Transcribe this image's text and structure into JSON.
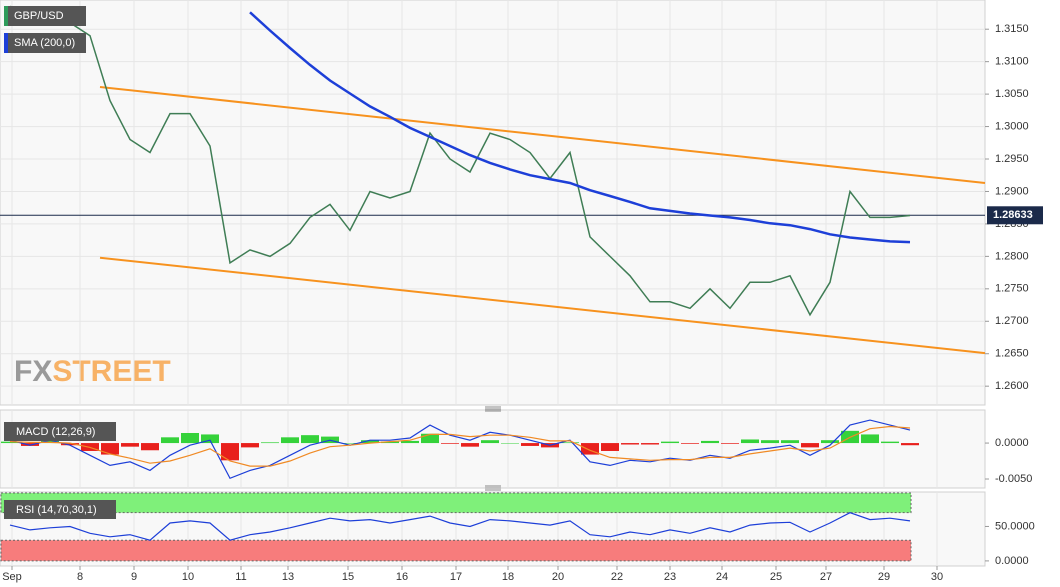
{
  "chart_data": [
    {
      "type": "line",
      "x": [
        0,
        1,
        2,
        3,
        4,
        5,
        6,
        7,
        8,
        9,
        10,
        11,
        12,
        13,
        14,
        15,
        16,
        17,
        18,
        19,
        20,
        21,
        22,
        23,
        24,
        25,
        26,
        27,
        28,
        29,
        30,
        31,
        32,
        33,
        34,
        35,
        36,
        37,
        38,
        39,
        40,
        41,
        42,
        43,
        44,
        45
      ],
      "xlim": [
        -0.5,
        48.75
      ],
      "xticks": [
        {
          "value": 0.1,
          "label": "Sep"
        },
        {
          "value": 3.5,
          "label": "8"
        },
        {
          "value": 6.2,
          "label": "9"
        },
        {
          "value": 8.9,
          "label": "10"
        },
        {
          "value": 11.55,
          "label": "11"
        },
        {
          "value": 13.9,
          "label": "13"
        },
        {
          "value": 16.9,
          "label": "15"
        },
        {
          "value": 19.6,
          "label": "16"
        },
        {
          "value": 22.3,
          "label": "17"
        },
        {
          "value": 24.9,
          "label": "18"
        },
        {
          "value": 27.4,
          "label": "20"
        },
        {
          "value": 30.35,
          "label": "22"
        },
        {
          "value": 33,
          "label": "23"
        },
        {
          "value": 35.6,
          "label": "24"
        },
        {
          "value": 38.3,
          "label": "25"
        },
        {
          "value": 40.8,
          "label": "27"
        },
        {
          "value": 43.7,
          "label": "29"
        },
        {
          "value": 46.35,
          "label": "30"
        }
      ],
      "ylim": [
        1.2571,
        1.3195
      ],
      "yticks": [
        {
          "value": 1.26,
          "label": "1.2600"
        },
        {
          "value": 1.265,
          "label": "1.2650"
        },
        {
          "value": 1.27,
          "label": "1.2700"
        },
        {
          "value": 1.275,
          "label": "1.2750"
        },
        {
          "value": 1.28,
          "label": "1.2800"
        },
        {
          "value": 1.285,
          "label": "1.2850"
        },
        {
          "value": 1.29,
          "label": "1.2900"
        },
        {
          "value": 1.295,
          "label": "1.2950"
        },
        {
          "value": 1.3,
          "label": "1.3000"
        },
        {
          "value": 1.305,
          "label": "1.3050"
        },
        {
          "value": 1.31,
          "label": "1.3100"
        },
        {
          "value": 1.315,
          "label": "1.3150"
        }
      ],
      "grid": true,
      "series": [
        {
          "name": "GBP/USD",
          "color": "#3f7d55",
          "legend_color": "#2e9b5a",
          "values": [
            1.3185,
            1.318,
            1.317,
            1.316,
            1.314,
            1.304,
            1.298,
            1.296,
            1.302,
            1.302,
            1.297,
            1.279,
            1.281,
            1.28,
            1.282,
            1.286,
            1.288,
            1.284,
            1.29,
            1.289,
            1.29,
            1.299,
            1.295,
            1.293,
            1.299,
            1.298,
            1.296,
            1.292,
            1.296,
            1.283,
            1.28,
            1.277,
            1.273,
            1.273,
            1.272,
            1.275,
            1.272,
            1.276,
            1.276,
            1.277,
            1.271,
            1.276,
            1.29,
            1.286,
            1.286,
            1.2863
          ]
        },
        {
          "name": "SMA (200,0)",
          "color": "#1d3fd8",
          "legend_color": "#1d3fd8",
          "values": [
            null,
            null,
            null,
            null,
            null,
            null,
            null,
            null,
            null,
            null,
            null,
            null,
            1.3176,
            1.3148,
            1.3121,
            1.3095,
            1.3071,
            1.3051,
            1.3031,
            1.3015,
            1.2998,
            1.2984,
            1.297,
            1.2956,
            1.2944,
            1.2934,
            1.2925,
            1.2919,
            1.2913,
            1.2902,
            1.2893,
            1.2884,
            1.2874,
            1.287,
            1.2866,
            1.2863,
            1.286,
            1.2856,
            1.2851,
            1.2848,
            1.2842,
            1.2834,
            1.2829,
            1.2826,
            1.2823,
            1.2822
          ]
        }
      ],
      "trend_lines": [
        {
          "color": "#f7921e",
          "x": [
            4.5,
            48.75
          ],
          "values": [
            1.3061,
            1.2913
          ]
        },
        {
          "color": "#f7921e",
          "x": [
            4.5,
            48.75
          ],
          "values": [
            1.2798,
            1.2651
          ]
        }
      ],
      "last_price": 1.28633,
      "last_price_color": "#1b2a4a"
    },
    {
      "type": "macd",
      "label": "MACD (12,26,9)",
      "ylim": [
        -0.00625,
        0.0046
      ],
      "yticks": [
        {
          "value": 0,
          "label": "0.0000"
        },
        {
          "value": -0.005,
          "label": "-0.0050"
        }
      ],
      "positive_color": "#35d23a",
      "negative_color": "#e8201c",
      "series": [
        {
          "color": "#1d3fd8",
          "values": [
            0.0004,
            -0.0003,
            0.0004,
            -0.0003,
            -0.0017,
            -0.0031,
            -0.0026,
            -0.0038,
            -0.0017,
            -0.0003,
            0.0004,
            -0.0049,
            -0.0038,
            -0.0031,
            -0.0017,
            -0.0003,
            0.0004,
            -0.0003,
            0.0004,
            0.0004,
            0.0007,
            0.0025,
            0.0011,
            0.0004,
            0.0015,
            0.0011,
            0.0004,
            -0.0003,
            0.0004,
            -0.0026,
            -0.0031,
            -0.0024,
            -0.0026,
            -0.0021,
            -0.0024,
            -0.0017,
            -0.0021,
            -0.001,
            -0.0007,
            -0.0003,
            -0.0017,
            -0.0003,
            0.0025,
            0.0032,
            0.0025,
            0.0018
          ]
        },
        {
          "color": "#f08a24",
          "values": [
            0.0002,
            0.0001,
            0.0001,
            0.0,
            -0.0006,
            -0.0015,
            -0.0021,
            -0.0028,
            -0.0025,
            -0.0017,
            -0.0008,
            -0.0025,
            -0.0032,
            -0.0032,
            -0.0025,
            -0.0014,
            -0.0005,
            -0.0003,
            0.0,
            0.0002,
            0.0004,
            0.0012,
            0.0012,
            0.0009,
            0.0011,
            0.0011,
            0.0008,
            0.0003,
            0.0003,
            -0.001,
            -0.002,
            -0.0022,
            -0.0024,
            -0.0023,
            -0.0023,
            -0.002,
            -0.002,
            -0.0015,
            -0.0011,
            -0.0007,
            -0.0011,
            -0.0007,
            0.0008,
            0.002,
            0.0023,
            0.0021
          ]
        }
      ],
      "histogram": [
        0.0002,
        -0.0004,
        0.0003,
        -0.0003,
        -0.0011,
        -0.0016,
        -0.0005,
        -0.001,
        0.0008,
        0.0014,
        0.0012,
        -0.0024,
        -0.0006,
        0.0001,
        0.0008,
        0.0011,
        0.0009,
        0.0,
        0.0004,
        0.0002,
        0.0003,
        0.0013,
        -0.0001,
        -0.0005,
        0.0004,
        0.0,
        -0.0004,
        -0.0006,
        0.0001,
        -0.0016,
        -0.0011,
        -0.0002,
        -0.0002,
        0.0002,
        -0.0001,
        0.0003,
        -0.0001,
        0.0005,
        0.0004,
        0.0004,
        -0.0006,
        0.0004,
        0.0017,
        0.0012,
        0.0002,
        -0.0003
      ]
    },
    {
      "type": "rsi",
      "label": "RSI (14,70,30,1)",
      "ylim": [
        -7.4,
        100
      ],
      "yticks": [
        {
          "value": 50,
          "label": "50.0000"
        },
        {
          "value": 0,
          "label": "0.0000"
        }
      ],
      "overbought": 70,
      "oversold": 30,
      "overbought_color": "#7ff07a",
      "oversold_color": "#f77c7c",
      "series": [
        {
          "color": "#1d3fd8",
          "values": [
            52,
            45,
            48,
            50,
            40,
            35,
            38,
            30,
            55,
            58,
            55,
            30,
            38,
            42,
            48,
            55,
            62,
            58,
            60,
            55,
            60,
            65,
            55,
            50,
            60,
            58,
            55,
            52,
            58,
            38,
            35,
            42,
            38,
            45,
            40,
            48,
            42,
            52,
            55,
            56,
            42,
            55,
            70,
            60,
            62,
            58
          ]
        }
      ]
    }
  ],
  "watermark": {
    "prefix": "FX",
    "suffix": "STREET"
  }
}
